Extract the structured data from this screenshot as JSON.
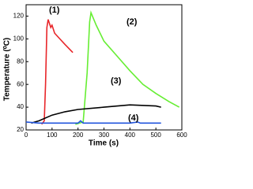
{
  "chart_data": {
    "type": "line",
    "xlabel": "Time (s)",
    "ylabel": "Temperature (⁰C)",
    "xlim": [
      0,
      600
    ],
    "xticks": [
      0,
      100,
      200,
      300,
      400,
      500,
      600
    ],
    "ylim": [
      20,
      130
    ],
    "yticks": [
      20,
      40,
      60,
      80,
      100,
      120
    ],
    "series": [
      {
        "name": "(1)",
        "color": "#e8262a",
        "x": [
          60,
          70,
          75,
          80,
          85,
          95,
          100,
          110,
          130,
          150,
          180
        ],
        "values": [
          25,
          28,
          60,
          110,
          117,
          110,
          112,
          105,
          100,
          95,
          88
        ]
      },
      {
        "name": "(2)",
        "color": "#66ee33",
        "x": [
          190,
          220,
          235,
          245,
          250,
          270,
          300,
          350,
          400,
          450,
          500,
          550,
          590
        ],
        "values": [
          25,
          27,
          70,
          115,
          123,
          112,
          98,
          85,
          72,
          60,
          52,
          45,
          40
        ]
      },
      {
        "name": "(3)",
        "color": "#000000",
        "x": [
          20,
          50,
          100,
          150,
          200,
          300,
          400,
          500,
          520
        ],
        "values": [
          26,
          28,
          33,
          36,
          38,
          40,
          42,
          41,
          40
        ]
      },
      {
        "name": "(4)",
        "color": "#2255dd",
        "x": [
          0,
          50,
          100,
          200,
          210,
          220,
          400,
          430,
          440,
          520
        ],
        "values": [
          27,
          26,
          26,
          26,
          28,
          26,
          26,
          27,
          26,
          26
        ]
      }
    ]
  }
}
